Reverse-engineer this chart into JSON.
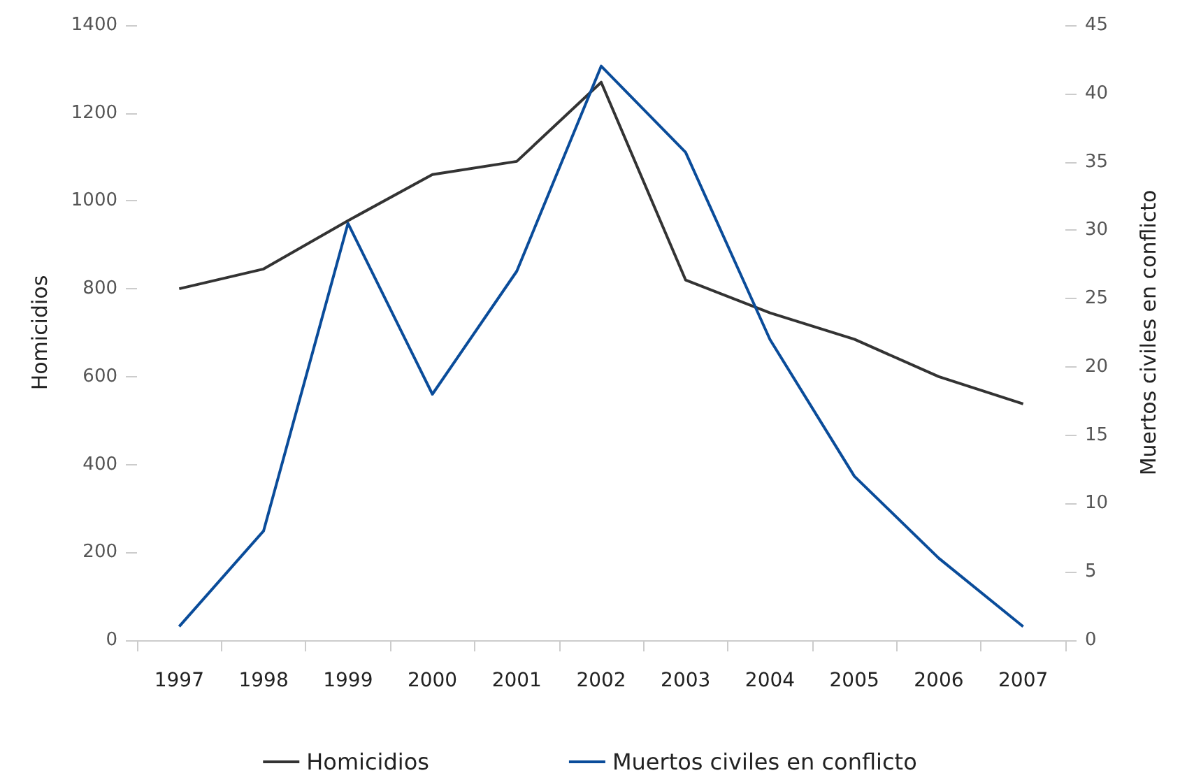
{
  "chart_data": {
    "type": "line",
    "xlabel": null,
    "ylabel": "Homicidios",
    "y2label": "Muertos civiles en conflicto",
    "categories": [
      "1997",
      "1998",
      "1999",
      "2000",
      "2001",
      "2002",
      "2003",
      "2004",
      "2005",
      "2006",
      "2007"
    ],
    "series": [
      {
        "name": "Homicidios",
        "color": "#333333",
        "values": [
          800,
          845,
          955,
          1060,
          1090,
          1270,
          820,
          745,
          685,
          600,
          538
        ]
      },
      {
        "name": "Muertos civiles en conflicto",
        "color": "#0a4c9a",
        "axis": "y2",
        "values": [
          1,
          8,
          30.5,
          18,
          27,
          42,
          35.7,
          22,
          12,
          6,
          1
        ]
      }
    ],
    "ylim": [
      0,
      1400
    ],
    "yticks": [
      0,
      200,
      400,
      600,
      800,
      1000,
      1200,
      1400
    ],
    "y2lim": [
      0,
      45
    ],
    "y2ticks": [
      0,
      5,
      10,
      15,
      20,
      25,
      30,
      35,
      40,
      45
    ],
    "grid": false,
    "legend": "bottom",
    "marker": "none",
    "line_style": "solid"
  }
}
